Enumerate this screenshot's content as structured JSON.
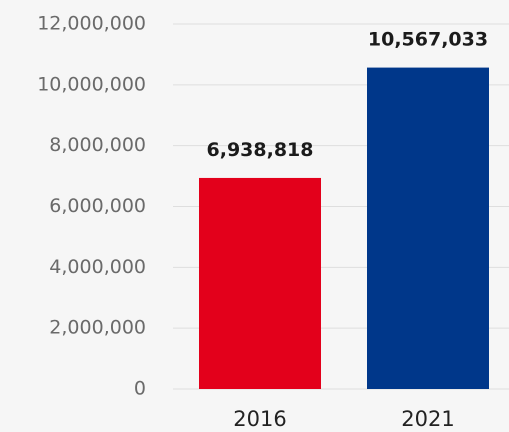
{
  "chart_data": {
    "type": "bar",
    "title": "",
    "xlabel": "",
    "ylabel": "",
    "categories": [
      "2016",
      "2021"
    ],
    "values": [
      6938818,
      10567033
    ],
    "value_labels": [
      "6,938,818",
      "10,567,033"
    ],
    "bar_colors": [
      "#e3001b",
      "#00378a"
    ],
    "ylim": [
      0,
      12000000
    ],
    "yticks": [
      0,
      2000000,
      4000000,
      6000000,
      8000000,
      10000000,
      12000000
    ],
    "ytick_labels": [
      "0",
      "2,000,000",
      "4,000,000",
      "6,000,000",
      "8,000,000",
      "10,000,000",
      "12,000,000"
    ],
    "grid": true,
    "legend": "none"
  }
}
